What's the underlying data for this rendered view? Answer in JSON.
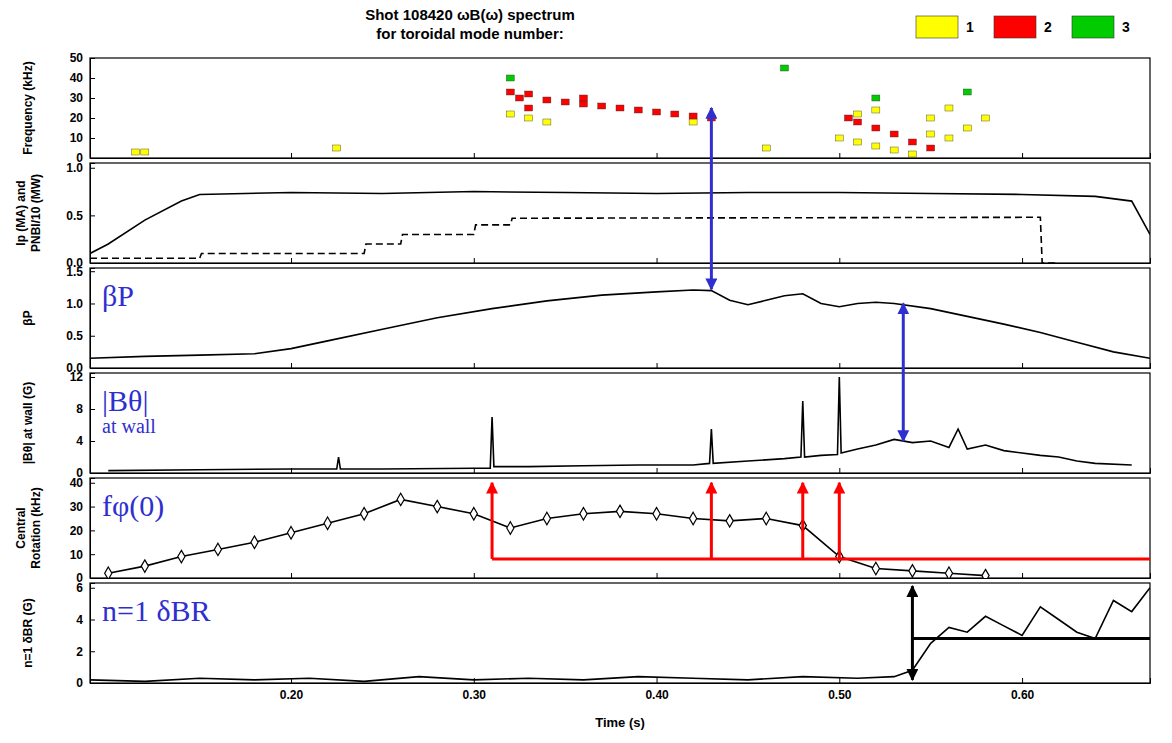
{
  "chart_data": [
    {
      "type": "scatter",
      "title": [
        "Shot 108420 ωB(ω) spectrum",
        "for toroidal mode number:"
      ],
      "ylabel": "Frequency (kHz)",
      "xlim": [
        0.09,
        0.67
      ],
      "xticks": [
        {
          "value": 0.2,
          "label": "0.20"
        },
        {
          "value": 0.3,
          "label": "0.30"
        },
        {
          "value": 0.4,
          "label": "0.40"
        },
        {
          "value": 0.5,
          "label": "0.50"
        },
        {
          "value": 0.6,
          "label": "0.60"
        }
      ],
      "ylim": [
        0,
        50
      ],
      "yticks": [
        0,
        10,
        20,
        30,
        40,
        50
      ],
      "tick_labels": "y",
      "legend": "upper right",
      "series": [
        {
          "name": "1",
          "color": "#ffff00",
          "x": [
            0.115,
            0.12,
            0.225,
            0.32,
            0.33,
            0.34,
            0.42,
            0.46,
            0.5,
            0.51,
            0.52,
            0.53,
            0.54,
            0.55,
            0.55,
            0.56,
            0.56,
            0.57,
            0.58,
            0.51,
            0.52
          ],
          "values": [
            3,
            3,
            5,
            22,
            20,
            18,
            18,
            5,
            10,
            8,
            6,
            4,
            2,
            12,
            20,
            10,
            25,
            15,
            20,
            22,
            24
          ]
        },
        {
          "name": "2",
          "color": "#ff0000",
          "x": [
            0.32,
            0.325,
            0.33,
            0.33,
            0.34,
            0.35,
            0.36,
            0.36,
            0.37,
            0.38,
            0.39,
            0.4,
            0.41,
            0.42,
            0.43,
            0.505,
            0.51,
            0.52,
            0.53,
            0.54,
            0.55
          ],
          "values": [
            33,
            30,
            32,
            25,
            29,
            28,
            27,
            30,
            26,
            25,
            24,
            23,
            22,
            21,
            20,
            20,
            18,
            15,
            12,
            8,
            5
          ]
        },
        {
          "name": "3",
          "color": "#00cc00",
          "x": [
            0.32,
            0.47,
            0.52,
            0.57
          ],
          "values": [
            40,
            45,
            30,
            33
          ]
        }
      ],
      "arrows": [
        {
          "x": 0.43,
          "y": 25,
          "color": "#2f2fd0"
        }
      ]
    },
    {
      "type": "line",
      "ylabel": [
        "Ip (MA) and",
        "PNBI/10 (MW)"
      ],
      "xlim": [
        0.09,
        0.67
      ],
      "xticks": [
        {
          "value": 0.2,
          "label": "0.20"
        },
        {
          "value": 0.3,
          "label": "0.30"
        },
        {
          "value": 0.4,
          "label": "0.40"
        },
        {
          "value": 0.5,
          "label": "0.50"
        },
        {
          "value": 0.6,
          "label": "0.60"
        }
      ],
      "ylim": [
        0,
        1.05
      ],
      "yticks": [
        {
          "value": 0,
          "label": "0.0"
        },
        0.5,
        {
          "value": 1,
          "label": "1.0"
        }
      ],
      "tick_labels": "y",
      "series": [
        {
          "color": "#000000",
          "line_style": "solid",
          "x": [
            0.09,
            0.1,
            0.12,
            0.14,
            0.15,
            0.2,
            0.25,
            0.3,
            0.35,
            0.4,
            0.45,
            0.5,
            0.55,
            0.6,
            0.64,
            0.66,
            0.67
          ],
          "values": [
            0.1,
            0.2,
            0.45,
            0.65,
            0.72,
            0.74,
            0.73,
            0.75,
            0.74,
            0.73,
            0.74,
            0.74,
            0.73,
            0.72,
            0.7,
            0.65,
            0.3
          ]
        },
        {
          "color": "#000000",
          "line_style": "dashed",
          "x": [
            0.09,
            0.15,
            0.151,
            0.24,
            0.241,
            0.26,
            0.261,
            0.3,
            0.301,
            0.32,
            0.321,
            0.61,
            0.611,
            0.62
          ],
          "values": [
            0.05,
            0.05,
            0.1,
            0.1,
            0.2,
            0.2,
            0.3,
            0.3,
            0.4,
            0.4,
            0.47,
            0.48,
            0,
            0
          ]
        }
      ]
    },
    {
      "type": "line",
      "ylabel": "βP",
      "annotation": [
        "βP"
      ],
      "xlim": [
        0.09,
        0.67
      ],
      "xticks": [
        {
          "value": 0.2,
          "label": "0.20"
        },
        {
          "value": 0.3,
          "label": "0.30"
        },
        {
          "value": 0.4,
          "label": "0.40"
        },
        {
          "value": 0.5,
          "label": "0.50"
        },
        {
          "value": 0.6,
          "label": "0.60"
        }
      ],
      "ylim": [
        0,
        1.55
      ],
      "yticks": [
        {
          "value": 0,
          "label": "0.0"
        },
        0.5,
        {
          "value": 1,
          "label": "1.0"
        },
        1.5
      ],
      "tick_labels": "y",
      "series": [
        {
          "color": "#000000",
          "line_style": "solid",
          "x": [
            0.09,
            0.12,
            0.15,
            0.18,
            0.2,
            0.22,
            0.25,
            0.28,
            0.31,
            0.34,
            0.37,
            0.4,
            0.42,
            0.43,
            0.44,
            0.45,
            0.46,
            0.47,
            0.48,
            0.49,
            0.5,
            0.51,
            0.52,
            0.53,
            0.55,
            0.57,
            0.59,
            0.61,
            0.63,
            0.65,
            0.67
          ],
          "values": [
            0.15,
            0.18,
            0.2,
            0.22,
            0.3,
            0.42,
            0.6,
            0.78,
            0.92,
            1.04,
            1.13,
            1.18,
            1.21,
            1.2,
            1.05,
            0.98,
            1.05,
            1.12,
            1.15,
            1.0,
            0.95,
            1.0,
            1.02,
            1.0,
            0.92,
            0.8,
            0.68,
            0.55,
            0.4,
            0.25,
            0.15
          ]
        }
      ],
      "arrows": [
        {
          "x": 0.43,
          "y": 1.22,
          "color": "#2f2fd0"
        },
        {
          "x": 0.535,
          "y": 1.0,
          "color": "#2f2fd0"
        }
      ]
    },
    {
      "type": "line",
      "ylabel": "|Bθ| at wall (G)",
      "annotation": [
        "|Bθ|",
        "at wall"
      ],
      "xlim": [
        0.09,
        0.67
      ],
      "xticks": [
        {
          "value": 0.2,
          "label": "0.20"
        },
        {
          "value": 0.3,
          "label": "0.30"
        },
        {
          "value": 0.4,
          "label": "0.40"
        },
        {
          "value": 0.5,
          "label": "0.50"
        },
        {
          "value": 0.6,
          "label": "0.60"
        }
      ],
      "ylim": [
        0,
        12.5
      ],
      "yticks": [
        0,
        4,
        8,
        12
      ],
      "tick_labels": "y",
      "series": [
        {
          "color": "#000000",
          "line_style": "solid",
          "x": [
            0.1,
            0.15,
            0.2,
            0.225,
            0.226,
            0.227,
            0.25,
            0.3,
            0.309,
            0.31,
            0.311,
            0.33,
            0.36,
            0.39,
            0.42,
            0.429,
            0.43,
            0.431,
            0.45,
            0.47,
            0.479,
            0.48,
            0.481,
            0.49,
            0.499,
            0.5,
            0.501,
            0.51,
            0.52,
            0.53,
            0.54,
            0.55,
            0.56,
            0.565,
            0.57,
            0.58,
            0.59,
            0.6,
            0.61,
            0.62,
            0.63,
            0.64,
            0.66
          ],
          "values": [
            0.3,
            0.4,
            0.5,
            0.5,
            2.0,
            0.5,
            0.5,
            0.6,
            0.6,
            7.0,
            0.8,
            0.8,
            0.9,
            1.0,
            1.0,
            1.2,
            5.5,
            1.2,
            1.5,
            1.8,
            2.0,
            9.0,
            2.0,
            2.2,
            2.3,
            12.0,
            2.5,
            3.0,
            3.5,
            4.2,
            3.8,
            4.0,
            3.2,
            5.5,
            3.0,
            3.5,
            2.8,
            2.5,
            2.2,
            2.0,
            1.5,
            1.2,
            1.0
          ]
        }
      ],
      "arrows": [
        {
          "x": 0.535,
          "y": 4,
          "color": "#2f2fd0"
        }
      ]
    },
    {
      "type": "line",
      "ylabel": [
        "Central",
        "Rotation (kHz)"
      ],
      "annotation": [
        "fφ(0)"
      ],
      "xlim": [
        0.09,
        0.67
      ],
      "xticks": [
        {
          "value": 0.2,
          "label": "0.20"
        },
        {
          "value": 0.3,
          "label": "0.30"
        },
        {
          "value": 0.4,
          "label": "0.40"
        },
        {
          "value": 0.5,
          "label": "0.50"
        },
        {
          "value": 0.6,
          "label": "0.60"
        }
      ],
      "ylim": [
        0,
        42
      ],
      "yticks": [
        0,
        10,
        20,
        30,
        40
      ],
      "tick_labels": "y",
      "series": [
        {
          "color": "#000000",
          "line_style": "solid",
          "marker": "diamond",
          "x": [
            0.1,
            0.12,
            0.14,
            0.16,
            0.18,
            0.2,
            0.22,
            0.24,
            0.26,
            0.28,
            0.3,
            0.32,
            0.34,
            0.36,
            0.38,
            0.4,
            0.42,
            0.44,
            0.46,
            0.48,
            0.5,
            0.52,
            0.54,
            0.56,
            0.58
          ],
          "values": [
            2,
            5,
            9,
            12,
            15,
            19,
            23,
            27,
            33,
            30,
            27,
            21,
            25,
            27,
            28,
            27,
            25,
            24,
            25,
            22,
            9,
            4,
            3,
            2,
            1
          ]
        }
      ],
      "hline": {
        "y": 8,
        "x": [
          0.31,
          0.67
        ],
        "color": "#ff0000"
      },
      "arrows": [
        {
          "x": 0.31,
          "from": 8,
          "y": 40,
          "color": "#ff0000"
        },
        {
          "x": 0.43,
          "from": 8,
          "y": 40,
          "color": "#ff0000"
        },
        {
          "x": 0.48,
          "from": 8,
          "y": 40,
          "color": "#ff0000"
        },
        {
          "x": 0.5,
          "from": 8,
          "y": 40,
          "color": "#ff0000"
        }
      ]
    },
    {
      "type": "line",
      "ylabel": "n=1 δBR (G)",
      "xlabel": "Time (s)",
      "annotation": [
        "n=1 δBR"
      ],
      "xlim": [
        0.09,
        0.67
      ],
      "xticks": [
        {
          "value": 0.2,
          "label": "0.20"
        },
        {
          "value": 0.3,
          "label": "0.30"
        },
        {
          "value": 0.4,
          "label": "0.40"
        },
        {
          "value": 0.5,
          "label": "0.50"
        },
        {
          "value": 0.6,
          "label": "0.60"
        }
      ],
      "ylim": [
        0,
        6.3
      ],
      "yticks": [
        0,
        2,
        4,
        6
      ],
      "series": [
        {
          "color": "#000000",
          "line_style": "solid",
          "x": [
            0.09,
            0.12,
            0.15,
            0.18,
            0.21,
            0.24,
            0.27,
            0.3,
            0.33,
            0.36,
            0.39,
            0.42,
            0.45,
            0.48,
            0.51,
            0.53,
            0.54,
            0.55,
            0.56,
            0.57,
            0.58,
            0.59,
            0.6,
            0.61,
            0.62,
            0.63,
            0.64,
            0.65,
            0.66,
            0.67
          ],
          "values": [
            0.2,
            0.1,
            0.3,
            0.2,
            0.3,
            0.1,
            0.4,
            0.2,
            0.3,
            0.2,
            0.4,
            0.3,
            0.2,
            0.4,
            0.3,
            0.4,
            0.8,
            2.5,
            3.5,
            3.2,
            4.2,
            3.6,
            3.0,
            4.8,
            4.0,
            3.2,
            2.8,
            5.2,
            4.5,
            6.0
          ]
        }
      ],
      "hline": {
        "y": 2.8,
        "x": [
          0.54,
          0.67
        ],
        "color": "#000000"
      },
      "arrows": [
        {
          "x": 0.54,
          "from": 0.2,
          "y": 6.1,
          "color": "#000000",
          "style": "double"
        }
      ]
    }
  ]
}
